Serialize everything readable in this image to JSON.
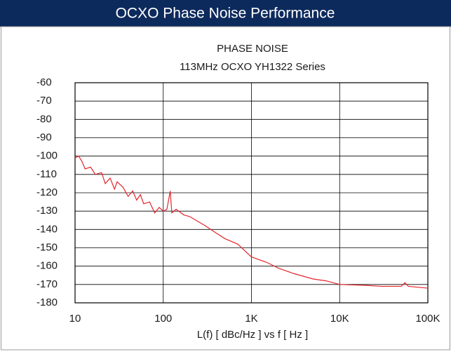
{
  "header": {
    "title": "OCXO Phase Noise Performance"
  },
  "chart_data": {
    "type": "line",
    "title": "PHASE NOISE",
    "subtitle": "113MHz OCXO YH1322 Series",
    "xlabel": "L(f) [ dBc/Hz ]  vs  f [ Hz ]",
    "x": [
      10,
      11,
      12,
      13,
      15,
      17,
      20,
      22,
      25,
      28,
      30,
      35,
      40,
      45,
      50,
      55,
      60,
      70,
      80,
      90,
      100,
      110,
      120,
      125,
      140,
      170,
      200,
      300,
      400,
      500,
      700,
      1000,
      1500,
      2000,
      3000,
      5000,
      7000,
      10000,
      20000,
      30000,
      50000,
      55000,
      60000,
      100000
    ],
    "values": [
      -101,
      -100,
      -103,
      -107,
      -106,
      -110,
      -109,
      -115,
      -112,
      -118,
      -114,
      -117,
      -122,
      -119,
      -124,
      -121,
      -126,
      -125,
      -131,
      -128,
      -130,
      -129,
      -119,
      -131,
      -129,
      -132,
      -133,
      -138,
      -142,
      -145,
      -148,
      -155,
      -158,
      -161,
      -164,
      -167,
      -168,
      -170,
      -170.5,
      -171,
      -171,
      -169,
      -171,
      -172
    ],
    "color": "#e3262c",
    "log_x": true,
    "grid": true,
    "xlim": [
      10,
      100000
    ],
    "xticks": [
      10,
      100,
      {
        "value": 1000,
        "label": "1K"
      },
      {
        "value": 10000,
        "label": "10K"
      },
      {
        "value": 100000,
        "label": "100K"
      }
    ],
    "ylim": [
      -180,
      -60
    ],
    "yticks": [
      -60,
      -70,
      -80,
      -90,
      -100,
      -110,
      -120,
      -130,
      -140,
      -150,
      -160,
      -170,
      -180
    ]
  }
}
